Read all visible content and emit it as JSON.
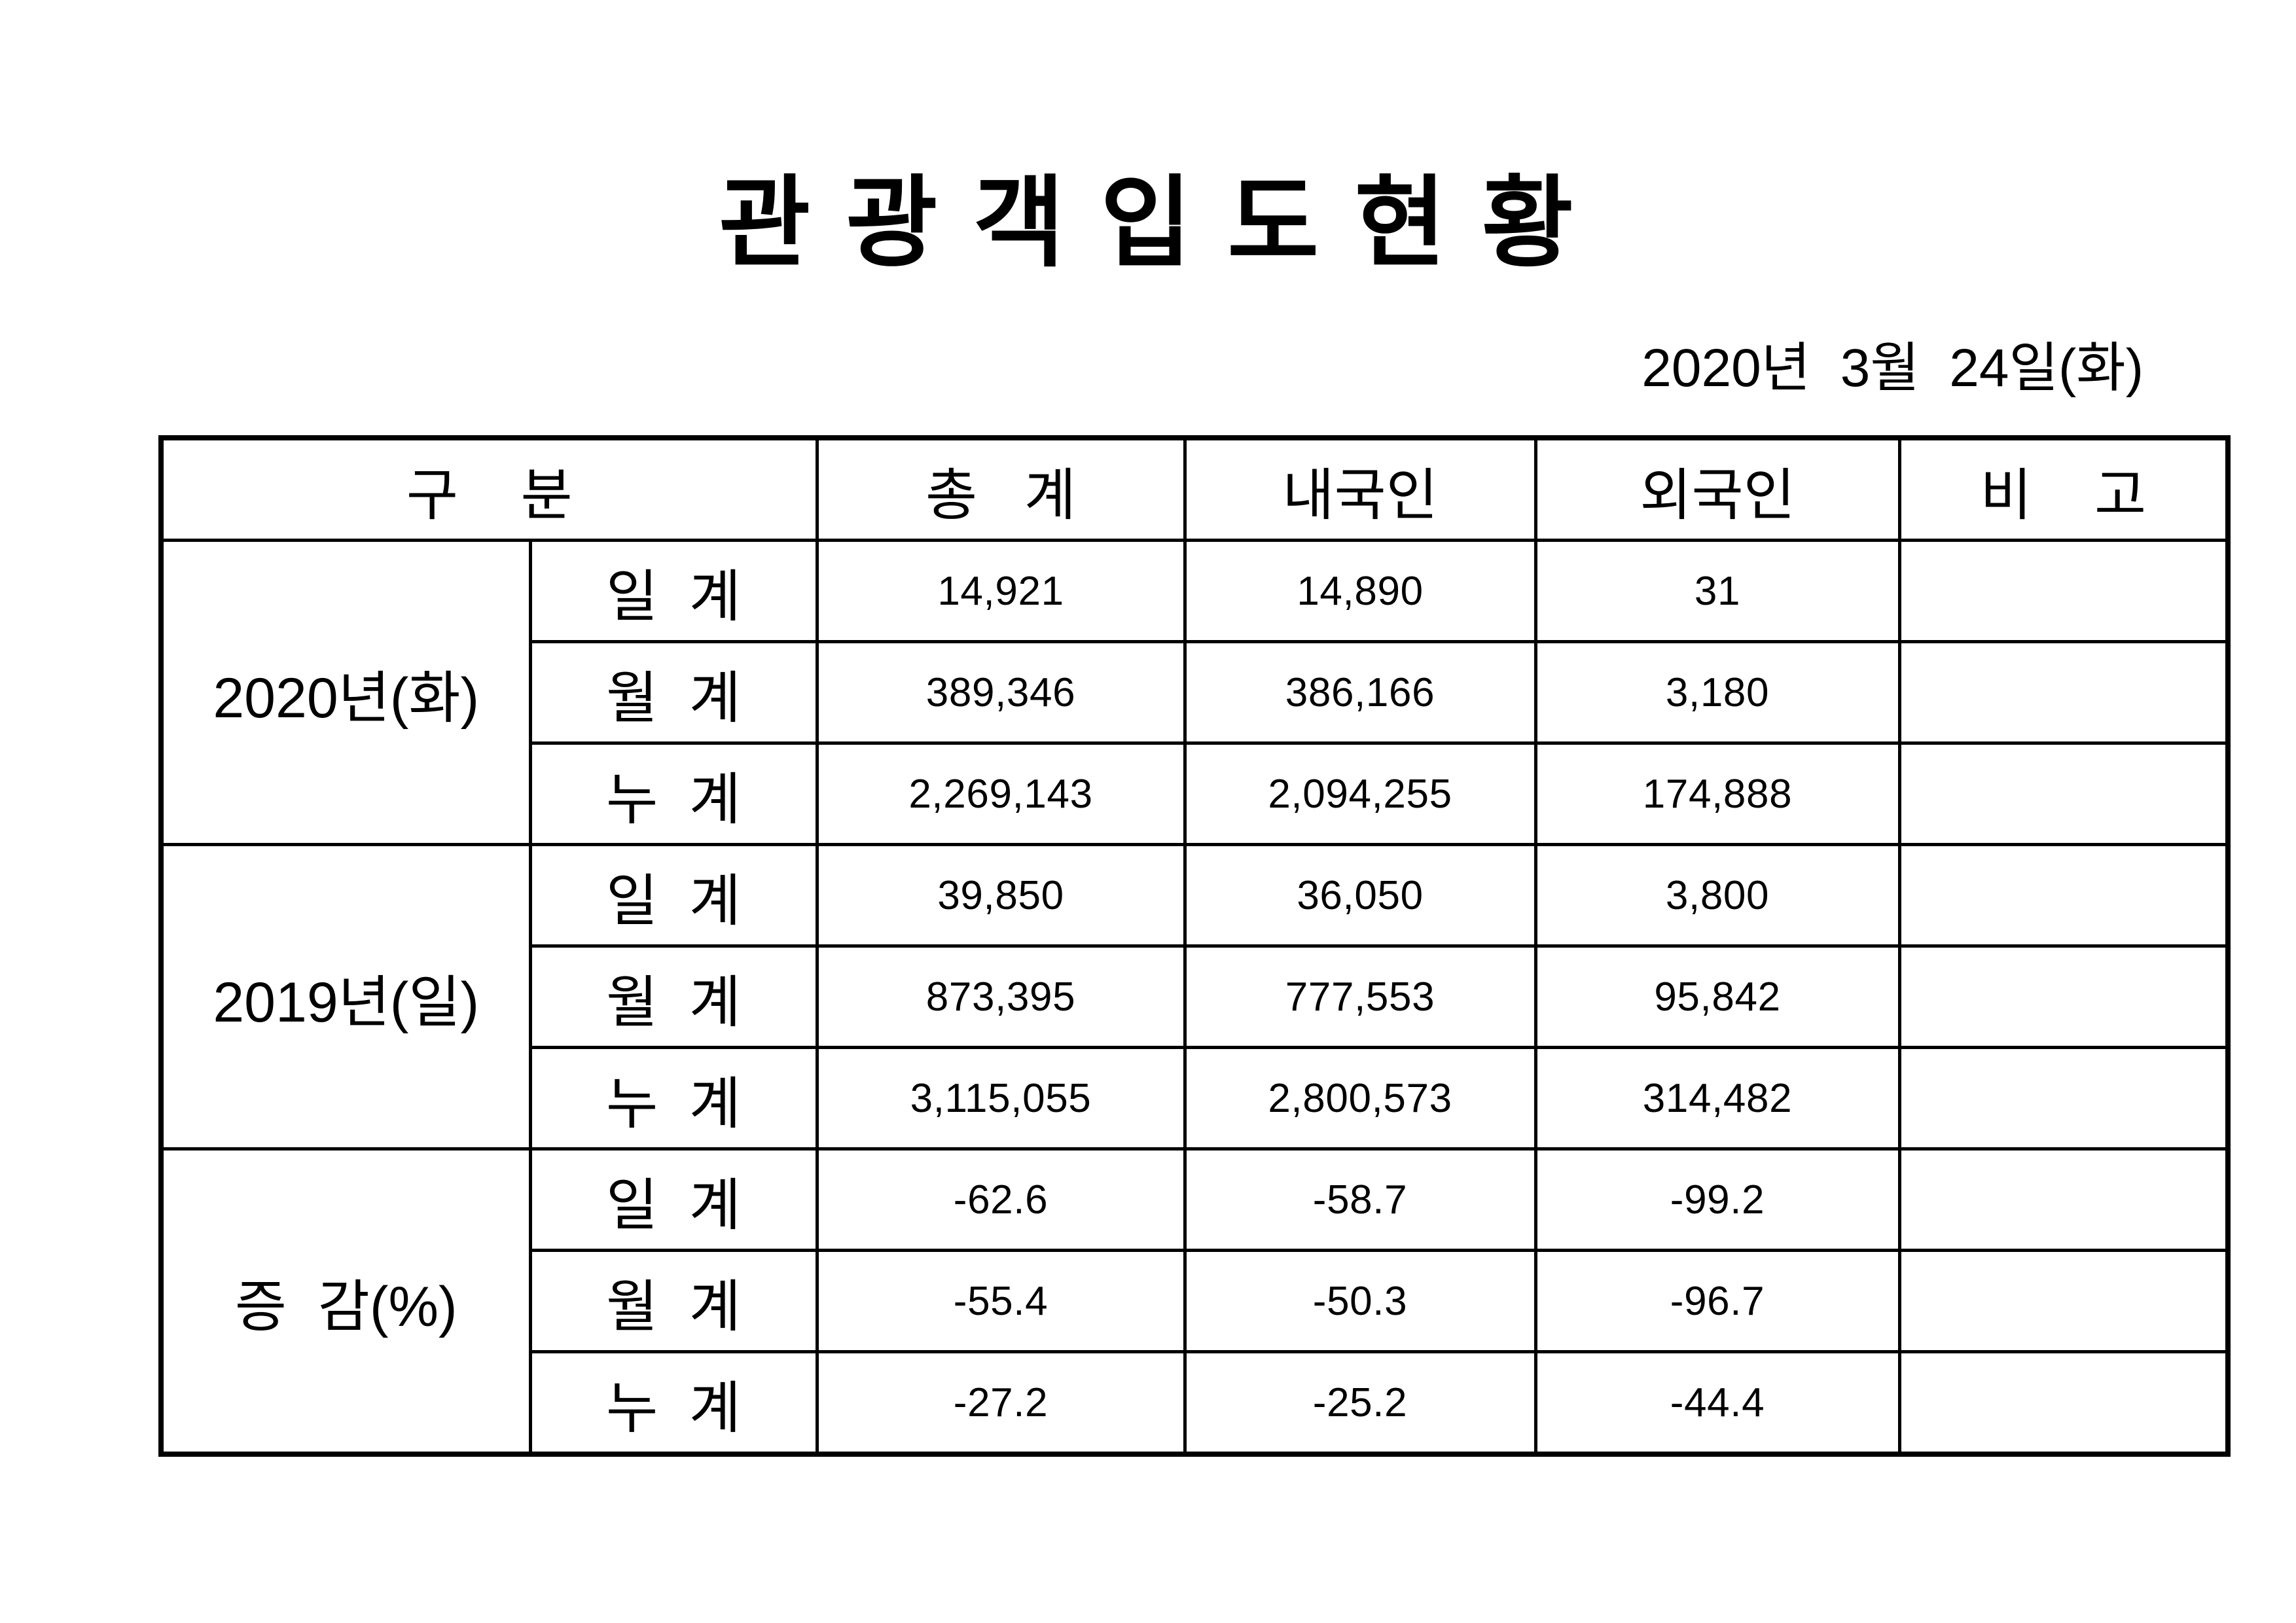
{
  "title": "관 광 객 입 도 현 황",
  "date": "2020년  3월  24일(화)",
  "table": {
    "headers": {
      "category": "구    분",
      "total": "총   계",
      "domestic": "내국인",
      "foreign": "외국인",
      "remarks": "비    고"
    },
    "sections": [
      {
        "group": "2020년(화)",
        "rows": [
          {
            "label": "일  계",
            "total": "14,921",
            "domestic": "14,890",
            "foreign": "31",
            "remarks": ""
          },
          {
            "label": "월  계",
            "total": "389,346",
            "domestic": "386,166",
            "foreign": "3,180",
            "remarks": ""
          },
          {
            "label": "누  계",
            "total": "2,269,143",
            "domestic": "2,094,255",
            "foreign": "174,888",
            "remarks": ""
          }
        ]
      },
      {
        "group": "2019년(일)",
        "rows": [
          {
            "label": "일  계",
            "total": "39,850",
            "domestic": "36,050",
            "foreign": "3,800",
            "remarks": ""
          },
          {
            "label": "월  계",
            "total": "873,395",
            "domestic": "777,553",
            "foreign": "95,842",
            "remarks": ""
          },
          {
            "label": "누  계",
            "total": "3,115,055",
            "domestic": "2,800,573",
            "foreign": "314,482",
            "remarks": ""
          }
        ]
      },
      {
        "group": "증  감(%)",
        "rows": [
          {
            "label": "일  계",
            "total": "-62.6",
            "domestic": "-58.7",
            "foreign": "-99.2",
            "remarks": ""
          },
          {
            "label": "월  계",
            "total": "-55.4",
            "domestic": "-50.3",
            "foreign": "-96.7",
            "remarks": ""
          },
          {
            "label": "누  계",
            "total": "-27.2",
            "domestic": "-25.2",
            "foreign": "-44.4",
            "remarks": ""
          }
        ]
      }
    ]
  }
}
